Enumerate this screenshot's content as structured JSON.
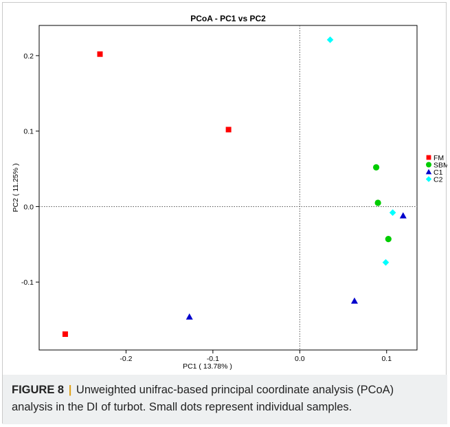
{
  "chart_data": {
    "type": "scatter",
    "title": "PCoA - PC1 vs PC2",
    "xlabel": "PC1 ( 13.78% )",
    "ylabel": "PC2 ( 11.25% )",
    "xlim": [
      -0.3,
      0.135
    ],
    "ylim": [
      -0.19,
      0.24
    ],
    "xticks": [
      -0.2,
      -0.1,
      0.0,
      0.1
    ],
    "xtick_labels": [
      "-0.2",
      "-0.1",
      "0.0",
      "0.1"
    ],
    "yticks": [
      -0.1,
      0.0,
      0.1,
      0.2
    ],
    "ytick_labels": [
      "-0.1",
      "0.0",
      "0.1",
      "0.2"
    ],
    "grid": false,
    "reference_lines": {
      "x": 0,
      "y": 0,
      "style": "dotted"
    },
    "legend_position": "right",
    "series": [
      {
        "name": "FM",
        "marker": "square",
        "color": "#ff0000",
        "points": [
          [
            -0.23,
            0.202
          ],
          [
            -0.082,
            0.102
          ],
          [
            -0.27,
            -0.169
          ]
        ]
      },
      {
        "name": "SBM",
        "marker": "circle",
        "color": "#00cc00",
        "points": [
          [
            0.088,
            0.052
          ],
          [
            0.09,
            0.005
          ],
          [
            0.102,
            -0.043
          ]
        ]
      },
      {
        "name": "C1",
        "marker": "triangle",
        "color": "#0000cc",
        "points": [
          [
            0.119,
            -0.012
          ],
          [
            0.063,
            -0.125
          ],
          [
            -0.127,
            -0.146
          ]
        ]
      },
      {
        "name": "C2",
        "marker": "diamond",
        "color": "#00ffff",
        "points": [
          [
            0.035,
            0.221
          ],
          [
            0.107,
            -0.008
          ],
          [
            0.099,
            -0.074
          ]
        ]
      }
    ]
  },
  "caption": {
    "label": "FIGURE 8",
    "separator": "|",
    "text": "Unweighted unifrac-based principal coordinate analysis (PCoA) analysis in the DI of turbot. Small dots represent individual samples."
  }
}
